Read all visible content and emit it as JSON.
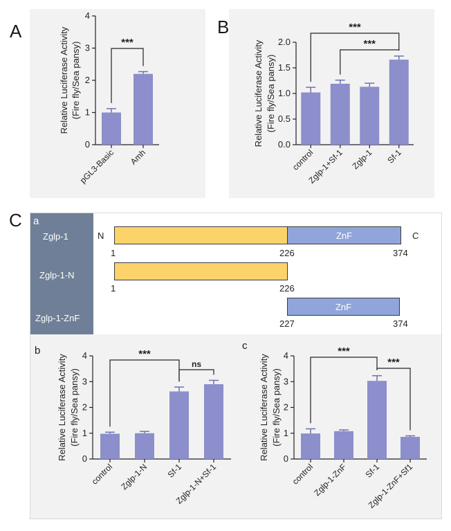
{
  "panel_letters": {
    "a": "A",
    "b": "B",
    "c": "C"
  },
  "sub_letters": {
    "a": "a",
    "b": "b",
    "c": "c"
  },
  "ylabel_line1": "Relative Luciferase Activity",
  "ylabel_line2": "(Fire fly/Sea pansy)",
  "colors": {
    "bar": "#8c8fcb",
    "error": "#6e71b3",
    "yellow": "#fcd36a",
    "blue": "#90a6da",
    "label_bg": "#6f7f97",
    "panel_bg": "#f2f2f2"
  },
  "diagram": {
    "constructs": [
      {
        "name": "Zglp-1",
        "start": 1,
        "end": 374,
        "domain_boundary": 226,
        "n_label": "N",
        "c_label": "C",
        "domain_label": "ZnF",
        "pos_labels": [
          "1",
          "226",
          "374"
        ]
      },
      {
        "name": "Zglp-1-N",
        "start": 1,
        "end": 226,
        "pos_labels": [
          "1",
          "226"
        ]
      },
      {
        "name": "Zglp-1-ZnF",
        "start": 227,
        "end": 374,
        "domain_label": "ZnF",
        "pos_labels": [
          "227",
          "374"
        ]
      }
    ]
  },
  "chart_data": [
    {
      "id": "A",
      "type": "bar",
      "categories": [
        "pGL3-Basic",
        "Amh"
      ],
      "values": [
        1.0,
        2.2
      ],
      "errors": [
        0.12,
        0.07
      ],
      "ylim": [
        0,
        4
      ],
      "yticks": [
        "0",
        "1",
        "2",
        "3",
        "4"
      ],
      "ylabel": "Relative Luciferase Activity (Fire fly/Sea pansy)",
      "significance": [
        {
          "pair": [
            0,
            1
          ],
          "label": "***"
        }
      ]
    },
    {
      "id": "B",
      "type": "bar",
      "categories": [
        "control",
        "Zglp-1+Sf-1",
        "Zglp-1",
        "Sf-1"
      ],
      "values": [
        1.02,
        1.19,
        1.13,
        1.66
      ],
      "errors": [
        0.1,
        0.07,
        0.07,
        0.07
      ],
      "ylim": [
        0,
        2.0
      ],
      "yticks": [
        "0.0",
        "0.5",
        "1.0",
        "1.5",
        "2.0"
      ],
      "ylabel": "Relative Luciferase Activity (Fire fly/Sea pansy)",
      "significance": [
        {
          "pair": [
            0,
            3
          ],
          "label": "***"
        },
        {
          "pair": [
            1,
            3
          ],
          "label": "***"
        }
      ]
    },
    {
      "id": "Cb",
      "type": "bar",
      "categories": [
        "control",
        "Zglp-1-N",
        "Sf-1",
        "Zglp-1-N+Sf-1"
      ],
      "values": [
        0.98,
        1.0,
        2.62,
        2.9
      ],
      "errors": [
        0.06,
        0.07,
        0.17,
        0.15
      ],
      "ylim": [
        0,
        4
      ],
      "yticks": [
        "0",
        "1",
        "2",
        "3",
        "4"
      ],
      "ylabel": "Relative Luciferase Activity (Fire fly/Sea pansy)",
      "significance": [
        {
          "pair": [
            0,
            2
          ],
          "label": "***"
        },
        {
          "pair": [
            2,
            3
          ],
          "label": "ns"
        }
      ]
    },
    {
      "id": "Cc",
      "type": "bar",
      "categories": [
        "control",
        "Zglp-1-ZnF",
        "Sf-1",
        "Zglp-1-ZnF+Sf1"
      ],
      "values": [
        0.99,
        1.08,
        3.03,
        0.86
      ],
      "errors": [
        0.18,
        0.05,
        0.2,
        0.04
      ],
      "ylim": [
        0,
        4
      ],
      "yticks": [
        "0",
        "1",
        "2",
        "3",
        "4"
      ],
      "ylabel": "Relative Luciferase Activity (Fire fly/Sea pansy)",
      "significance": [
        {
          "pair": [
            0,
            2
          ],
          "label": "***"
        },
        {
          "pair": [
            2,
            3
          ],
          "label": "***"
        }
      ]
    }
  ]
}
